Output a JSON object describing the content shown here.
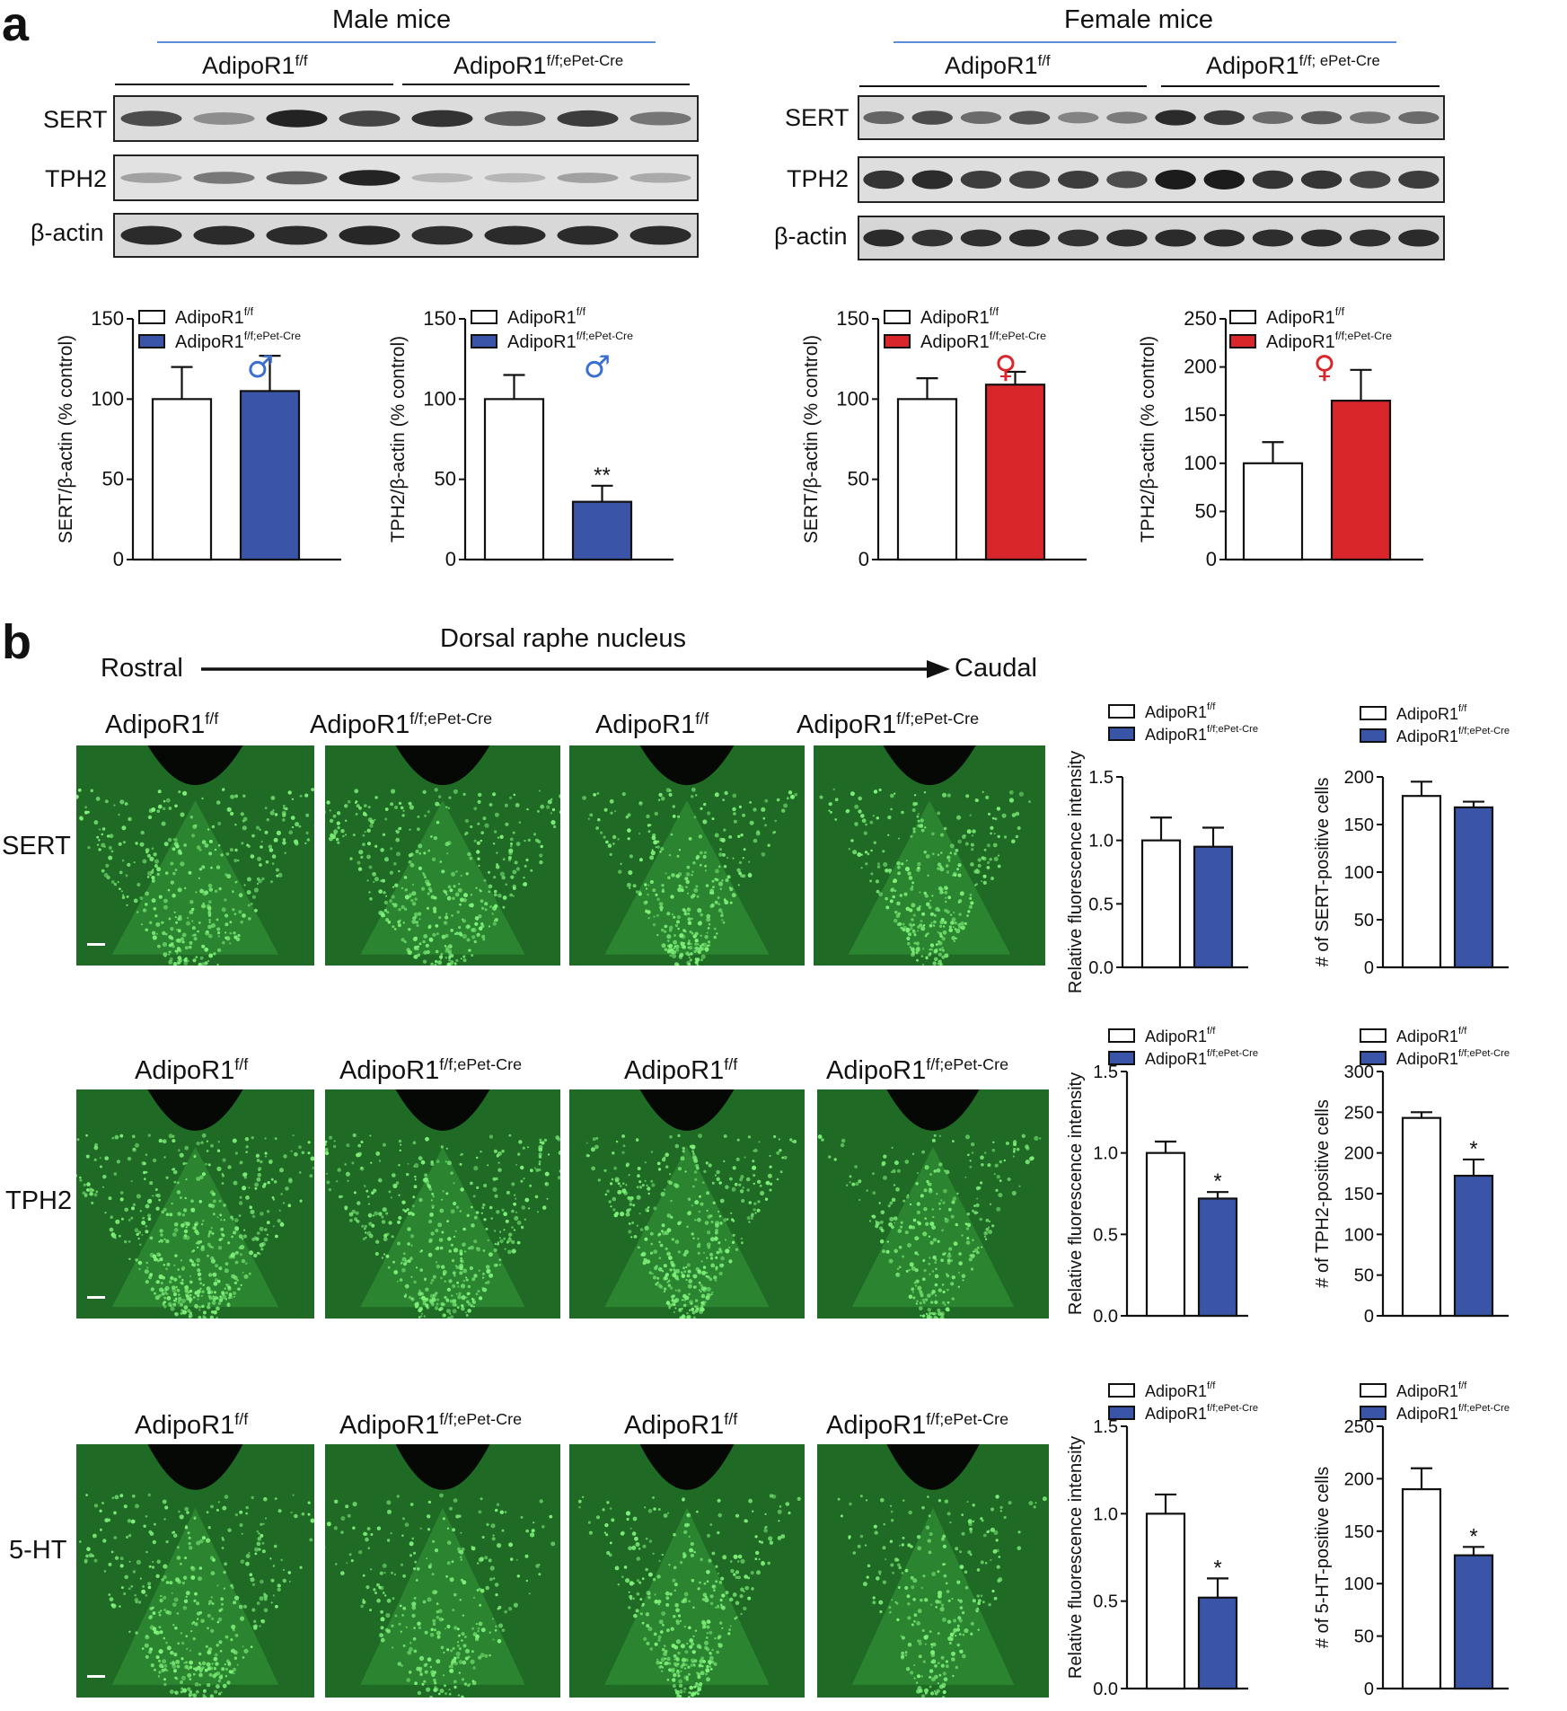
{
  "panel_a": {
    "letter": "a",
    "male_title": "Male mice",
    "female_title": "Female mice",
    "group_ctrl": "AdipoR1",
    "group_ctrl_sup": "f/f",
    "group_ko": "AdipoR1",
    "group_ko_sup_male": "f/f;ePet-Cre",
    "group_ko_sup_female": "f/f; ePet-Cre",
    "blot_rows": [
      "SERT",
      "TPH2",
      "β-actin"
    ],
    "male_symbol": "♂",
    "female_symbol": "♀",
    "colors": {
      "male_ko": "#3a55a8",
      "female_ko": "#d8262b",
      "ctrl": "#ffffff"
    }
  },
  "panel_b": {
    "letter": "b",
    "region": "Dorsal raphe nucleus",
    "rostral": "Rostral",
    "caudal": "Caudal",
    "rows": [
      "SERT",
      "TPH2",
      "5-HT"
    ],
    "image_labels": [
      {
        "base": "AdipoR1",
        "sup": "f/f"
      },
      {
        "base": "AdipoR1",
        "sup": "f/f;ePet-Cre"
      },
      {
        "base": "AdipoR1",
        "sup": "f/f"
      },
      {
        "base": "AdipoR1",
        "sup": "f/f;ePet-Cre"
      }
    ]
  },
  "chart_data": [
    {
      "id": "a1",
      "type": "bar",
      "categories": [
        "AdipoR1f/f",
        "AdipoR1f/f;ePet-Cre"
      ],
      "legend": [
        {
          "base": "AdipoR1",
          "sup": "f/f"
        },
        {
          "base": "AdipoR1",
          "sup": "f/f;ePet-Cre"
        }
      ],
      "values": [
        100,
        105
      ],
      "errors": [
        20,
        22
      ],
      "colors": [
        "#ffffff",
        "#3a55a8"
      ],
      "ylabel": "SERT/β-actin (% control)",
      "ylim": [
        0,
        150
      ],
      "yticks": [
        0,
        50,
        100,
        150
      ],
      "sig": [
        "",
        ""
      ],
      "symbol": "♂",
      "symbol_color": "#3a6fd1"
    },
    {
      "id": "a2",
      "type": "bar",
      "categories": [
        "AdipoR1f/f",
        "AdipoR1f/f;ePet-Cre"
      ],
      "legend": [
        {
          "base": "AdipoR1",
          "sup": "f/f"
        },
        {
          "base": "AdipoR1",
          "sup": "f/f;ePet-Cre"
        }
      ],
      "values": [
        100,
        36
      ],
      "errors": [
        15,
        10
      ],
      "colors": [
        "#ffffff",
        "#3a55a8"
      ],
      "ylabel": "TPH2/β-actin (% control)",
      "ylim": [
        0,
        150
      ],
      "yticks": [
        0,
        50,
        100,
        150
      ],
      "sig": [
        "",
        "**"
      ],
      "symbol": "♂",
      "symbol_color": "#3a6fd1"
    },
    {
      "id": "a3",
      "type": "bar",
      "categories": [
        "AdipoR1f/f",
        "AdipoR1f/f;ePet-Cre"
      ],
      "legend": [
        {
          "base": "AdipoR1",
          "sup": "f/f"
        },
        {
          "base": "AdipoR1",
          "sup": "f/f;ePet-Cre"
        }
      ],
      "values": [
        100,
        109
      ],
      "errors": [
        13,
        8
      ],
      "colors": [
        "#ffffff",
        "#d8262b"
      ],
      "ylabel": "SERT/β-actin (% control)",
      "ylim": [
        0,
        150
      ],
      "yticks": [
        0,
        50,
        100,
        150
      ],
      "sig": [
        "",
        ""
      ],
      "symbol": "♀",
      "symbol_color": "#d8262b"
    },
    {
      "id": "a4",
      "type": "bar",
      "categories": [
        "AdipoR1f/f",
        "AdipoR1f/f;ePet-Cre"
      ],
      "legend": [
        {
          "base": "AdipoR1",
          "sup": "f/f"
        },
        {
          "base": "AdipoR1",
          "sup": "f/f;ePet-Cre"
        }
      ],
      "values": [
        100,
        165
      ],
      "errors": [
        22,
        32
      ],
      "colors": [
        "#ffffff",
        "#d8262b"
      ],
      "ylabel": "TPH2/β-actin (% control)",
      "ylim": [
        0,
        250
      ],
      "yticks": [
        0,
        50,
        100,
        150,
        200,
        250
      ],
      "sig": [
        "",
        ""
      ],
      "symbol": "♀",
      "symbol_color": "#d8262b"
    },
    {
      "id": "b1",
      "type": "bar",
      "categories": [
        "AdipoR1f/f",
        "AdipoR1f/f;ePet-Cre"
      ],
      "legend": [
        {
          "base": "AdipoR1",
          "sup": "f/f"
        },
        {
          "base": "AdipoR1",
          "sup": "f/f;ePet-Cre"
        }
      ],
      "values": [
        1.0,
        0.95
      ],
      "errors": [
        0.18,
        0.15
      ],
      "colors": [
        "#ffffff",
        "#3a55a8"
      ],
      "ylabel": "Relative fluorescence intensity",
      "ylim": [
        0,
        1.5
      ],
      "yticks": [
        "0.0",
        "0.5",
        "1.0",
        "1.5"
      ],
      "sig": [
        "",
        ""
      ]
    },
    {
      "id": "b2",
      "type": "bar",
      "categories": [
        "AdipoR1f/f",
        "AdipoR1f/f;ePet-Cre"
      ],
      "legend": [
        {
          "base": "AdipoR1",
          "sup": "f/f"
        },
        {
          "base": "AdipoR1",
          "sup": "f/f;ePet-Cre"
        }
      ],
      "values": [
        180,
        168
      ],
      "errors": [
        15,
        6
      ],
      "colors": [
        "#ffffff",
        "#3a55a8"
      ],
      "ylabel": "# of SERT-positive cells",
      "ylim": [
        0,
        200
      ],
      "yticks": [
        "0",
        "50",
        "100",
        "150",
        "200"
      ],
      "sig": [
        "",
        ""
      ]
    },
    {
      "id": "b3",
      "type": "bar",
      "categories": [
        "AdipoR1f/f",
        "AdipoR1f/f;ePet-Cre"
      ],
      "legend": [
        {
          "base": "AdipoR1",
          "sup": "f/f"
        },
        {
          "base": "AdipoR1",
          "sup": "f/f;ePet-Cre"
        }
      ],
      "values": [
        1.0,
        0.72
      ],
      "errors": [
        0.07,
        0.04
      ],
      "colors": [
        "#ffffff",
        "#3a55a8"
      ],
      "ylabel": "Relative fluorescence intensity",
      "ylim": [
        0,
        1.5
      ],
      "yticks": [
        "0.0",
        "0.5",
        "1.0",
        "1.5"
      ],
      "sig": [
        "",
        "*"
      ]
    },
    {
      "id": "b4",
      "type": "bar",
      "categories": [
        "AdipoR1f/f",
        "AdipoR1f/f;ePet-Cre"
      ],
      "legend": [
        {
          "base": "AdipoR1",
          "sup": "f/f"
        },
        {
          "base": "AdipoR1",
          "sup": "f/f;ePet-Cre"
        }
      ],
      "values": [
        243,
        172
      ],
      "errors": [
        7,
        20
      ],
      "colors": [
        "#ffffff",
        "#3a55a8"
      ],
      "ylabel": "# of TPH2-positive cells",
      "ylim": [
        0,
        300
      ],
      "yticks": [
        "0",
        "50",
        "100",
        "150",
        "200",
        "250",
        "300"
      ],
      "sig": [
        "",
        "*"
      ]
    },
    {
      "id": "b5",
      "type": "bar",
      "categories": [
        "AdipoR1f/f",
        "AdipoR1f/f;ePet-Cre"
      ],
      "legend": [
        {
          "base": "AdipoR1",
          "sup": "f/f"
        },
        {
          "base": "AdipoR1",
          "sup": "f/f;ePet-Cre"
        }
      ],
      "values": [
        1.0,
        0.52
      ],
      "errors": [
        0.11,
        0.11
      ],
      "colors": [
        "#ffffff",
        "#3a55a8"
      ],
      "ylabel": "Relative fluorescence intensity",
      "ylim": [
        0,
        1.5
      ],
      "yticks": [
        "0.0",
        "0.5",
        "1.0",
        "1.5"
      ],
      "sig": [
        "",
        "*"
      ]
    },
    {
      "id": "b6",
      "type": "bar",
      "categories": [
        "AdipoR1f/f",
        "AdipoR1f/f;ePet-Cre"
      ],
      "legend": [
        {
          "base": "AdipoR1",
          "sup": "f/f"
        },
        {
          "base": "AdipoR1",
          "sup": "f/f;ePet-Cre"
        }
      ],
      "values": [
        190,
        127
      ],
      "errors": [
        20,
        8
      ],
      "colors": [
        "#ffffff",
        "#3a55a8"
      ],
      "ylabel": "# of 5-HT-positive cells",
      "ylim": [
        0,
        250
      ],
      "yticks": [
        "0",
        "50",
        "100",
        "150",
        "200",
        "250"
      ],
      "sig": [
        "",
        "*"
      ]
    }
  ]
}
